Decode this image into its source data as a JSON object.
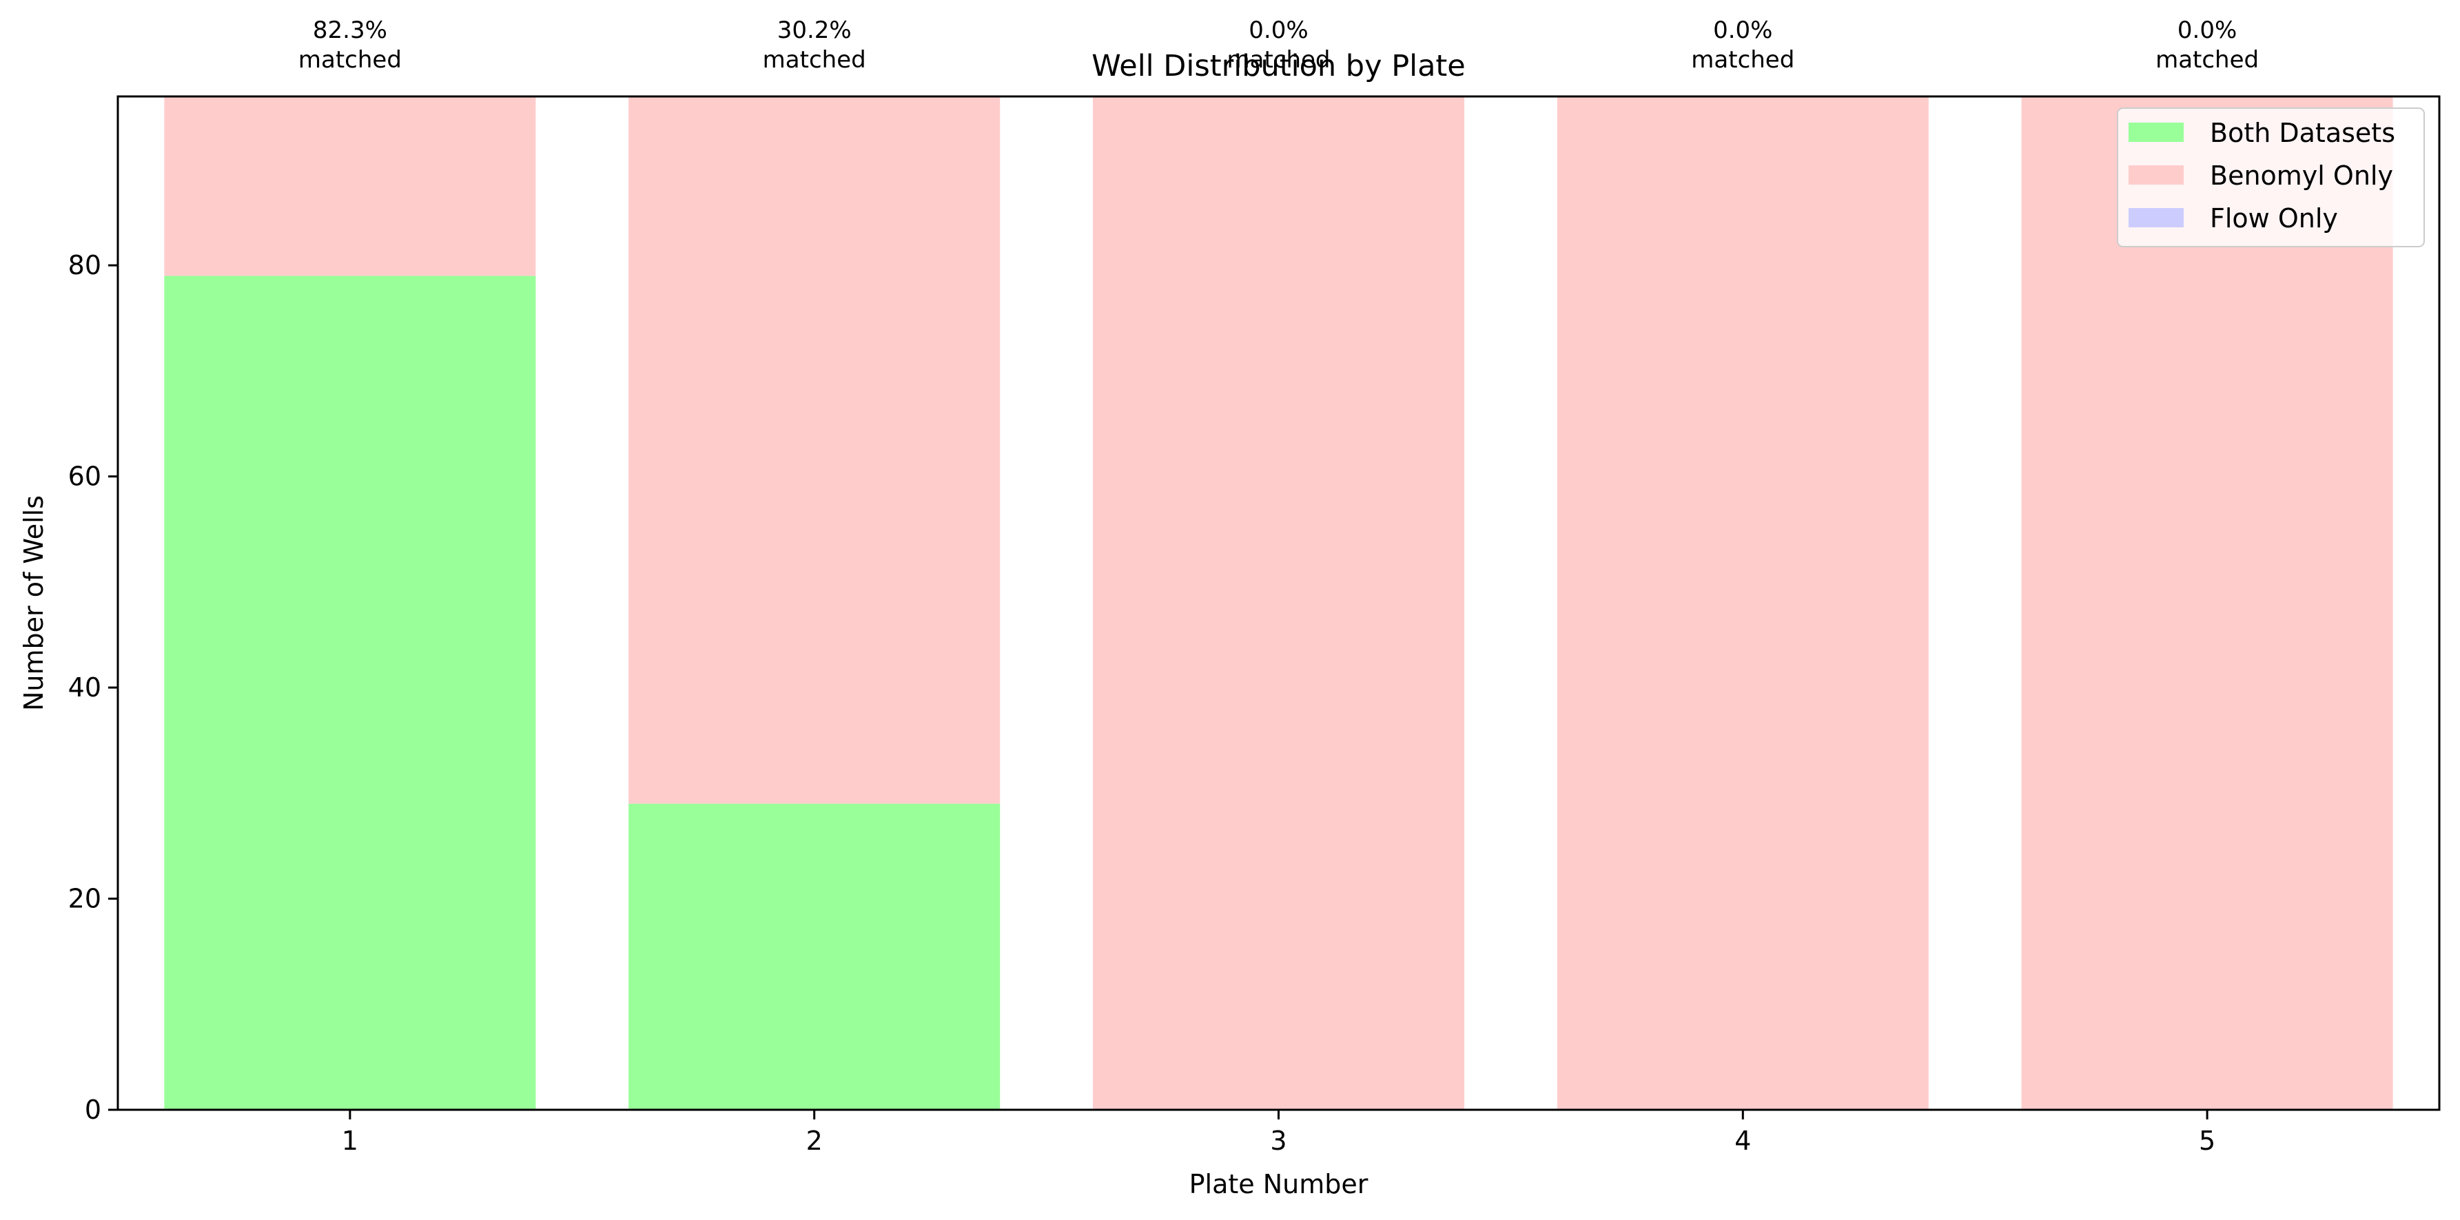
{
  "chart_data": {
    "type": "bar",
    "stacked": true,
    "title": "Well Distribution by Plate",
    "xlabel": "Plate Number",
    "ylabel": "Number of Wells",
    "categories": [
      "1",
      "2",
      "3",
      "4",
      "5"
    ],
    "series": [
      {
        "name": "Both Datasets",
        "color": "#99ff99",
        "values": [
          79,
          29,
          0,
          0,
          0
        ]
      },
      {
        "name": "Benomyl Only",
        "color": "#ffcccc",
        "values": [
          17,
          67,
          96,
          96,
          96
        ]
      },
      {
        "name": "Flow Only",
        "color": "#ccccff",
        "values": [
          0,
          0,
          0,
          0,
          0
        ]
      }
    ],
    "annotations": [
      {
        "pct": "82.3%",
        "text": "matched"
      },
      {
        "pct": "30.2%",
        "text": "matched"
      },
      {
        "pct": "0.0%",
        "text": "matched"
      },
      {
        "pct": "0.0%",
        "text": "matched"
      },
      {
        "pct": "0.0%",
        "text": "matched"
      }
    ],
    "ylim": [
      0,
      96
    ],
    "yticks": [
      0,
      20,
      40,
      60,
      80
    ],
    "legend_placement": "top-right",
    "grid": false
  }
}
